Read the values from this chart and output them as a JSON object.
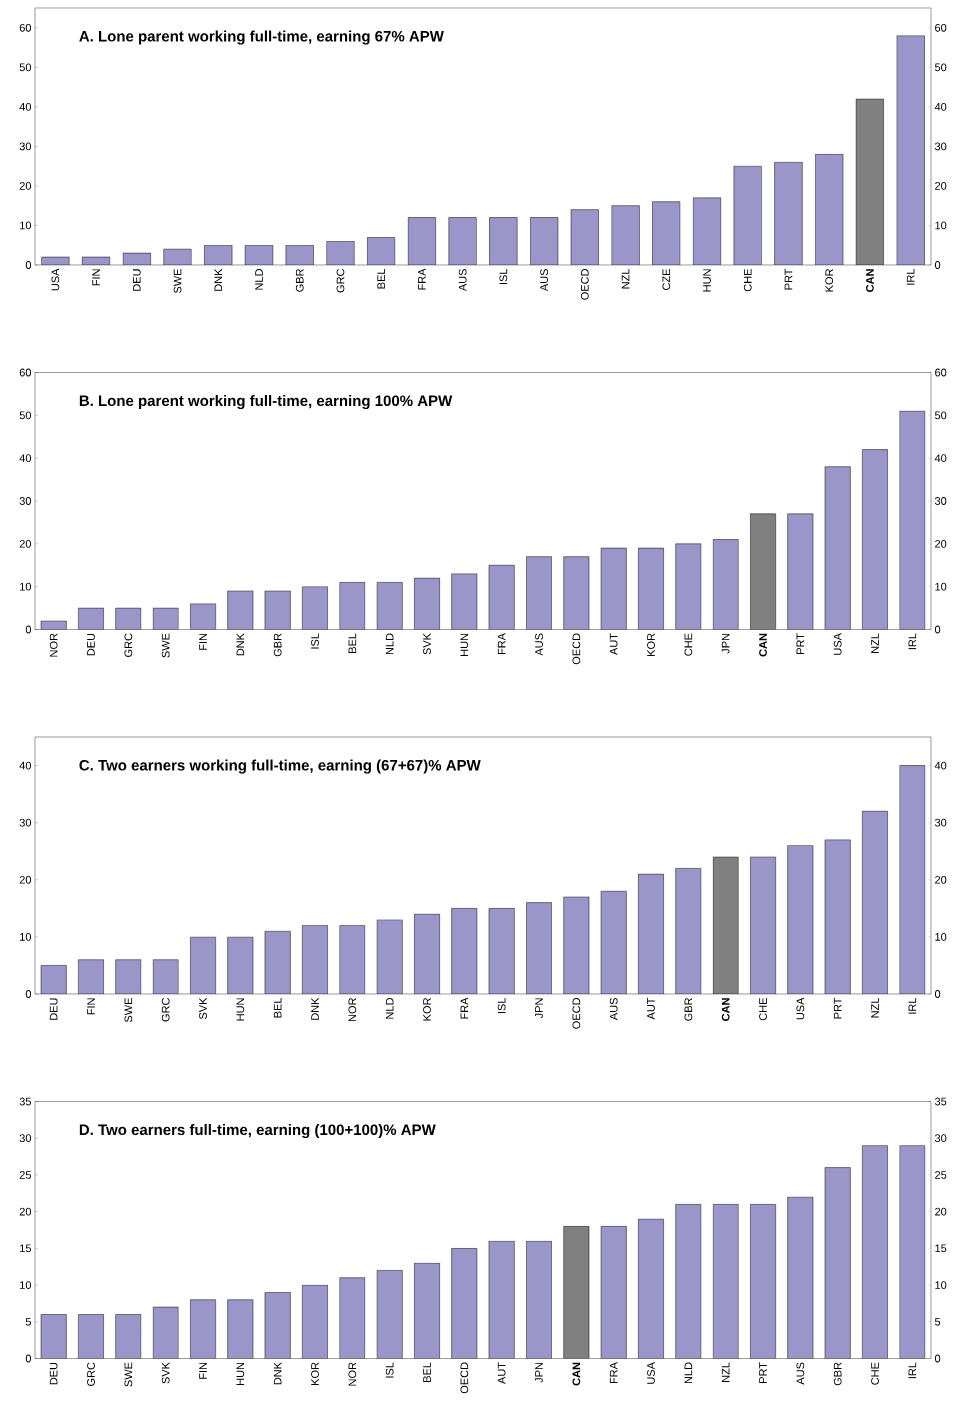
{
  "chart_data": [
    {
      "type": "bar",
      "title": "A. Lone parent working full-time, earning 67% APW",
      "categories": [
        "USA",
        "FIN",
        "DEU",
        "SWE",
        "DNK",
        "NLD",
        "GBR",
        "GRC",
        "BEL",
        "FRA",
        "AUS",
        "ISL",
        "AUS",
        "OECD",
        "NZL",
        "CZE",
        "HUN",
        "CHE",
        "PRT",
        "KOR",
        "**CAN**",
        "IRL"
      ],
      "values": [
        2,
        2,
        3,
        4,
        5,
        5,
        5,
        6,
        7,
        12,
        12,
        12,
        12,
        14,
        15,
        16,
        17,
        25,
        26,
        28,
        42,
        58
      ],
      "colors": [
        "#9b96c9",
        "#9b96c9",
        "#9b96c9",
        "#9b96c9",
        "#9b96c9",
        "#9b96c9",
        "#9b96c9",
        "#9b96c9",
        "#9b96c9",
        "#9b96c9",
        "#9b96c9",
        "#9b96c9",
        "#9b96c9",
        "#9b96c9",
        "#9b96c9",
        "#9b96c9",
        "#9b96c9",
        "#9b96c9",
        "#9b96c9",
        "#9b96c9",
        "#808080",
        "#9b96c9"
      ],
      "ylim": [
        0,
        65
      ],
      "yticks": [
        0,
        10,
        20,
        30,
        40,
        50,
        60
      ],
      "y2lim": [
        0,
        65
      ],
      "y2ticks": [
        0,
        10,
        20,
        30,
        40,
        50,
        60
      ]
    },
    {
      "type": "bar",
      "title": "B. Lone parent working full-time, earning 100% APW",
      "categories": [
        "NOR",
        "DEU",
        "GRC",
        "SWE",
        "FIN",
        "DNK",
        "GBR",
        "ISL",
        "BEL",
        "NLD",
        "SVK",
        "HUN",
        "FRA",
        "AUS",
        "OECD",
        "AUT",
        "KOR",
        "CHE",
        "JPN",
        "**CAN**",
        "PRT",
        "USA",
        "NZL",
        "IRL"
      ],
      "values": [
        2,
        5,
        5,
        5,
        6,
        9,
        9,
        10,
        11,
        11,
        12,
        13,
        15,
        17,
        17,
        19,
        19,
        20,
        21,
        27,
        27,
        38,
        42,
        51
      ],
      "colors": [
        "#9b96c9",
        "#9b96c9",
        "#9b96c9",
        "#9b96c9",
        "#9b96c9",
        "#9b96c9",
        "#9b96c9",
        "#9b96c9",
        "#9b96c9",
        "#9b96c9",
        "#9b96c9",
        "#9b96c9",
        "#9b96c9",
        "#9b96c9",
        "#9b96c9",
        "#9b96c9",
        "#9b96c9",
        "#9b96c9",
        "#9b96c9",
        "#808080",
        "#9b96c9",
        "#9b96c9",
        "#9b96c9",
        "#9b96c9"
      ],
      "ylim": [
        0,
        60
      ],
      "yticks": [
        0,
        10,
        20,
        30,
        40,
        50,
        60
      ],
      "y2lim": [
        0,
        60
      ],
      "y2ticks": [
        0,
        10,
        20,
        30,
        40,
        50,
        60
      ]
    },
    {
      "type": "bar",
      "title": "C. Two earners working full-time, earning (67+67)% APW",
      "categories": [
        "DEU",
        "FIN",
        "SWE",
        "GRC",
        "SVK",
        "HUN",
        "BEL",
        "DNK",
        "NOR",
        "NLD",
        "KOR",
        "FRA",
        "ISL",
        "JPN",
        "OECD",
        "AUS",
        "AUT",
        "GBR",
        "**CAN**",
        "CHE",
        "USA",
        "PRT",
        "NZL",
        "IRL"
      ],
      "values": [
        5,
        6,
        6,
        6,
        10,
        10,
        11,
        12,
        12,
        13,
        14,
        15,
        15,
        16,
        17,
        18,
        21,
        22,
        24,
        24,
        26,
        27,
        32,
        40
      ],
      "colors": [
        "#9b96c9",
        "#9b96c9",
        "#9b96c9",
        "#9b96c9",
        "#9b96c9",
        "#9b96c9",
        "#9b96c9",
        "#9b96c9",
        "#9b96c9",
        "#9b96c9",
        "#9b96c9",
        "#9b96c9",
        "#9b96c9",
        "#9b96c9",
        "#9b96c9",
        "#9b96c9",
        "#9b96c9",
        "#9b96c9",
        "#808080",
        "#9b96c9",
        "#9b96c9",
        "#9b96c9",
        "#9b96c9",
        "#9b96c9"
      ],
      "ylim": [
        0,
        45
      ],
      "yticks": [
        0,
        10,
        20,
        30,
        40
      ],
      "y2lim": [
        0,
        45
      ],
      "y2ticks": [
        0,
        10,
        20,
        30,
        40
      ]
    },
    {
      "type": "bar",
      "title": "D. Two earners full-time, earning (100+100)% APW",
      "categories": [
        "DEU",
        "GRC",
        "SWE",
        "SVK",
        "FIN",
        "HUN",
        "DNK",
        "KOR",
        "NOR",
        "ISL",
        "BEL",
        "OECD",
        "AUT",
        "JPN",
        "**CAN**",
        "FRA",
        "USA",
        "NLD",
        "NZL",
        "PRT",
        "AUS",
        "GBR",
        "CHE",
        "IRL"
      ],
      "values": [
        6,
        6,
        6,
        7,
        8,
        8,
        9,
        10,
        11,
        12,
        13,
        15,
        16,
        16,
        18,
        18,
        19,
        21,
        21,
        21,
        22,
        26,
        29,
        29
      ],
      "colors": [
        "#9b96c9",
        "#9b96c9",
        "#9b96c9",
        "#9b96c9",
        "#9b96c9",
        "#9b96c9",
        "#9b96c9",
        "#9b96c9",
        "#9b96c9",
        "#9b96c9",
        "#9b96c9",
        "#9b96c9",
        "#9b96c9",
        "#9b96c9",
        "#808080",
        "#9b96c9",
        "#9b96c9",
        "#9b96c9",
        "#9b96c9",
        "#9b96c9",
        "#9b96c9",
        "#9b96c9",
        "#9b96c9",
        "#9b96c9"
      ],
      "ylim": [
        0,
        35
      ],
      "yticks": [
        0,
        5,
        10,
        15,
        20,
        25,
        30,
        35
      ],
      "y2lim": [
        0,
        35
      ],
      "y2ticks": [
        0,
        5,
        10,
        15,
        20,
        25,
        30,
        35
      ]
    }
  ]
}
